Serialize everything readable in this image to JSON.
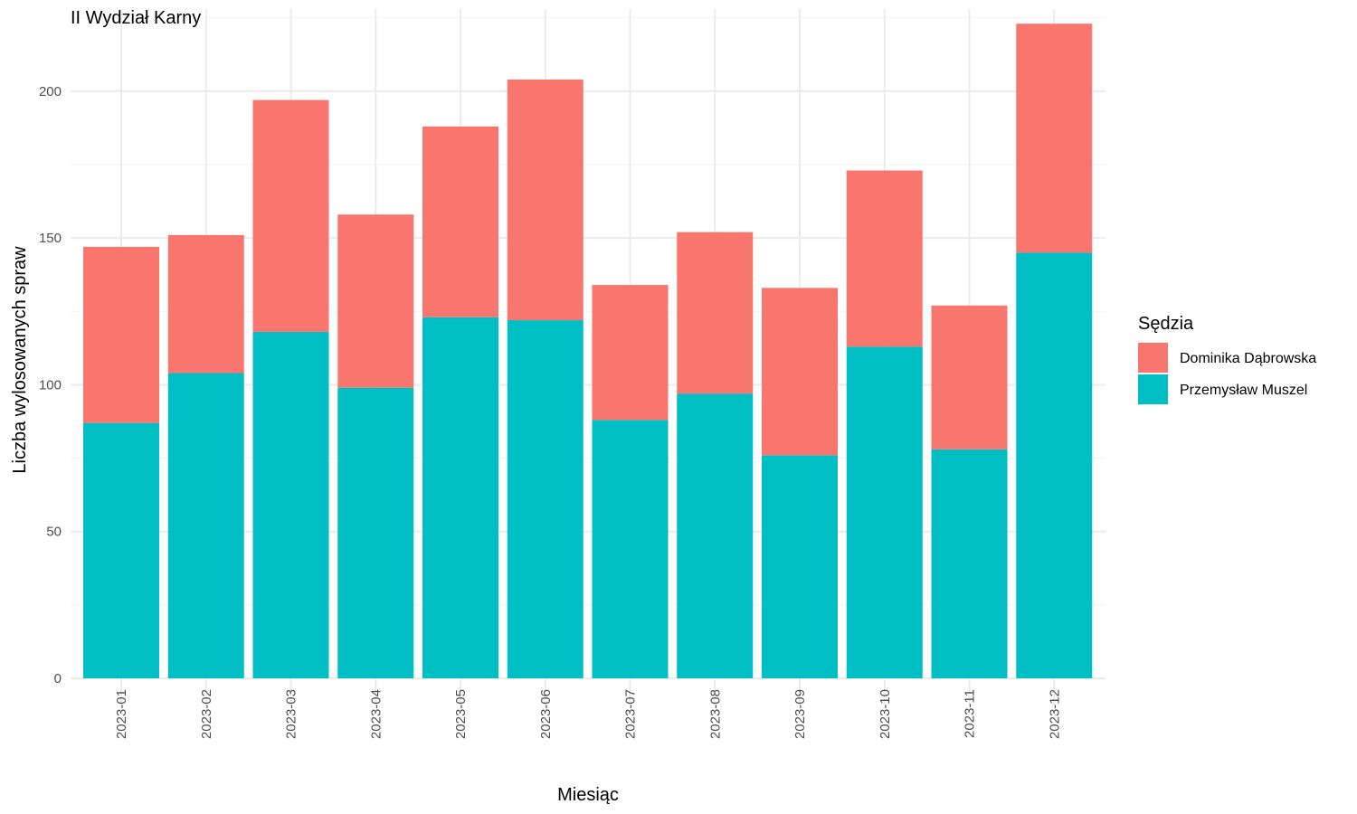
{
  "chart_data": {
    "type": "bar",
    "stacked": true,
    "title": "II Wydział Karny",
    "xlabel": "Miesiąc",
    "ylabel": "Liczba wylosowanych spraw",
    "ylim": [
      0,
      228
    ],
    "yticks": [
      0,
      50,
      100,
      150,
      200
    ],
    "grid": true,
    "legend_position": "right",
    "legend_title": "Sędzia",
    "categories": [
      "2023-01",
      "2023-02",
      "2023-03",
      "2023-04",
      "2023-05",
      "2023-06",
      "2023-07",
      "2023-08",
      "2023-09",
      "2023-10",
      "2023-11",
      "2023-12"
    ],
    "series": [
      {
        "name": "Przemysław Muszel",
        "color": "#00BFC4",
        "values": [
          87,
          104,
          118,
          99,
          123,
          122,
          88,
          97,
          76,
          113,
          78,
          145
        ]
      },
      {
        "name": "Dominika Dąbrowska",
        "color": "#F8766D",
        "values": [
          60,
          47,
          79,
          59,
          65,
          82,
          46,
          55,
          57,
          60,
          49,
          78
        ]
      }
    ],
    "legend_order": [
      1,
      0
    ]
  }
}
